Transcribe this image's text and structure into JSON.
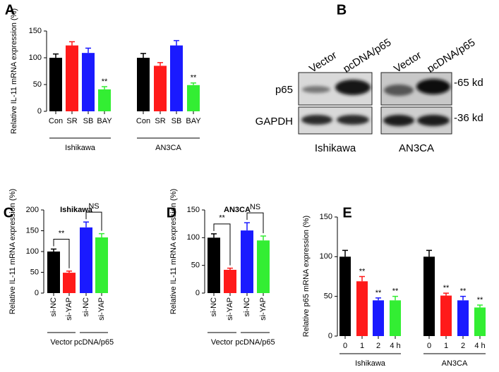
{
  "chart_data": [
    {
      "type": "bar",
      "panel": "A",
      "ylabel": "Relative  IL-11 mRNA expression (%)",
      "categories": [
        "Con",
        "SR",
        "SB",
        "BAY",
        "Con",
        "SR",
        "SB",
        "BAY"
      ],
      "values": [
        100,
        123,
        109,
        41,
        100,
        85,
        123,
        49
      ],
      "errors": [
        7,
        7,
        9,
        5,
        8,
        6,
        9,
        4
      ],
      "significance": [
        null,
        null,
        null,
        "**",
        null,
        null,
        null,
        "**"
      ],
      "colors": [
        "#000000",
        "#ff1a1a",
        "#1a1aff",
        "#33ee33",
        "#000000",
        "#ff1a1a",
        "#1a1aff",
        "#33ee33"
      ],
      "groups": [
        "Ishikawa",
        "AN3CA"
      ],
      "ylim": [
        0,
        150
      ],
      "yticks": [
        0,
        50,
        100,
        150
      ]
    },
    {
      "type": "bar",
      "panel": "C",
      "title": "Ishikawa",
      "ylabel": "Relative IL-11 mRNA expression (%)",
      "categories": [
        "si-NC",
        "si-YAP",
        "si-NC",
        "si-YAP"
      ],
      "values": [
        100,
        49,
        158,
        134
      ],
      "errors": [
        6,
        4,
        13,
        9
      ],
      "colors": [
        "#000000",
        "#ff1a1a",
        "#1a1aff",
        "#33ee33"
      ],
      "groups": [
        "Vector",
        "pcDNA/p65"
      ],
      "comparisons": [
        {
          "pair": [
            0,
            1
          ],
          "label": "**"
        },
        {
          "pair": [
            2,
            3
          ],
          "label": "NS"
        }
      ],
      "ylim": [
        0,
        200
      ],
      "yticks": [
        0,
        50,
        100,
        150,
        200
      ]
    },
    {
      "type": "bar",
      "panel": "D",
      "title": "AN3CA",
      "ylabel": "Relative IL-11 mRNA expression (%)",
      "categories": [
        "si-NC",
        "si-YAP",
        "si-NC",
        "si-YAP"
      ],
      "values": [
        100,
        42,
        113,
        95
      ],
      "errors": [
        7,
        3,
        14,
        8
      ],
      "colors": [
        "#000000",
        "#ff1a1a",
        "#1a1aff",
        "#33ee33"
      ],
      "groups": [
        "Vector",
        "pcDNA/p65"
      ],
      "comparisons": [
        {
          "pair": [
            0,
            1
          ],
          "label": "**"
        },
        {
          "pair": [
            2,
            3
          ],
          "label": "NS"
        }
      ],
      "ylim": [
        0,
        150
      ],
      "yticks": [
        0,
        50,
        100,
        150
      ]
    },
    {
      "type": "bar",
      "panel": "E",
      "ylabel": "Relative p65 mRNA expression (%)",
      "categories": [
        "0",
        "1",
        "2",
        "4 h",
        "0",
        "1",
        "2",
        "4 h"
      ],
      "values": [
        100,
        69,
        45,
        45,
        100,
        51,
        45,
        36
      ],
      "errors": [
        8,
        6,
        3,
        5,
        8,
        3,
        5,
        3
      ],
      "significance": [
        null,
        "**",
        "**",
        "**",
        null,
        "**",
        "**",
        "**"
      ],
      "colors": [
        "#000000",
        "#ff1a1a",
        "#1a1aff",
        "#33ee33",
        "#000000",
        "#ff1a1a",
        "#1a1aff",
        "#33ee33"
      ],
      "groups": [
        "Ishikawa",
        "AN3CA"
      ],
      "ylim": [
        0,
        150
      ],
      "yticks": [
        0,
        50,
        100,
        150
      ]
    }
  ],
  "blot": {
    "panel": "B",
    "lanes": [
      "Vector",
      "pcDNA/p65",
      "Vector",
      "pcDNA/p65"
    ],
    "rows": [
      "p65",
      "GAPDH"
    ],
    "sizes": [
      "-65 kd",
      "-36 kd"
    ],
    "cell_lines": [
      "Ishikawa",
      "AN3CA"
    ]
  }
}
